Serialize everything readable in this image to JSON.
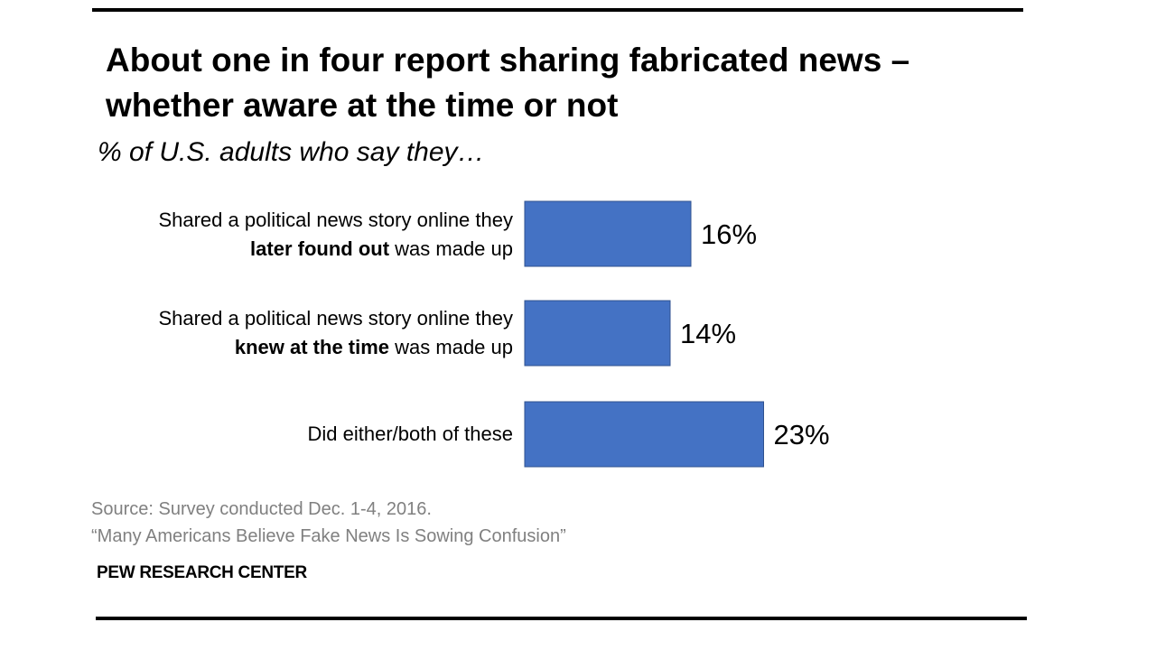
{
  "title": "About one in four report sharing fabricated news – whether aware at the time or not",
  "subtitle": "% of U.S. adults who say they…",
  "source_line1": "Source: Survey conducted Dec. 1-4, 2016.",
  "source_line2": "“Many Americans Believe Fake News Is Sowing Confusion”",
  "brand": "PEW RESEARCH CENTER",
  "bar_color": "#4472C4",
  "chart_data": {
    "type": "bar",
    "orientation": "horizontal",
    "categories": [
      "Shared a political news story online they later found out was made up",
      "Shared a political news story online they knew at the time was made up",
      "Did either/both of these"
    ],
    "category_parts": [
      {
        "line1": "Shared a political news story online they",
        "bold": "later found out",
        "rest": " was made up"
      },
      {
        "line1": "Shared a political news story online they",
        "bold": "knew at the time",
        "rest": " was made up"
      },
      {
        "line1": "Did either/both of these",
        "bold": "",
        "rest": ""
      }
    ],
    "values": [
      16,
      14,
      23
    ],
    "data_labels": [
      "16%",
      "14%",
      "23%"
    ],
    "title": "About one in four report sharing fabricated news – whether aware at the time or not",
    "xlim": [
      0,
      100
    ],
    "grid": false,
    "legend": "none"
  }
}
